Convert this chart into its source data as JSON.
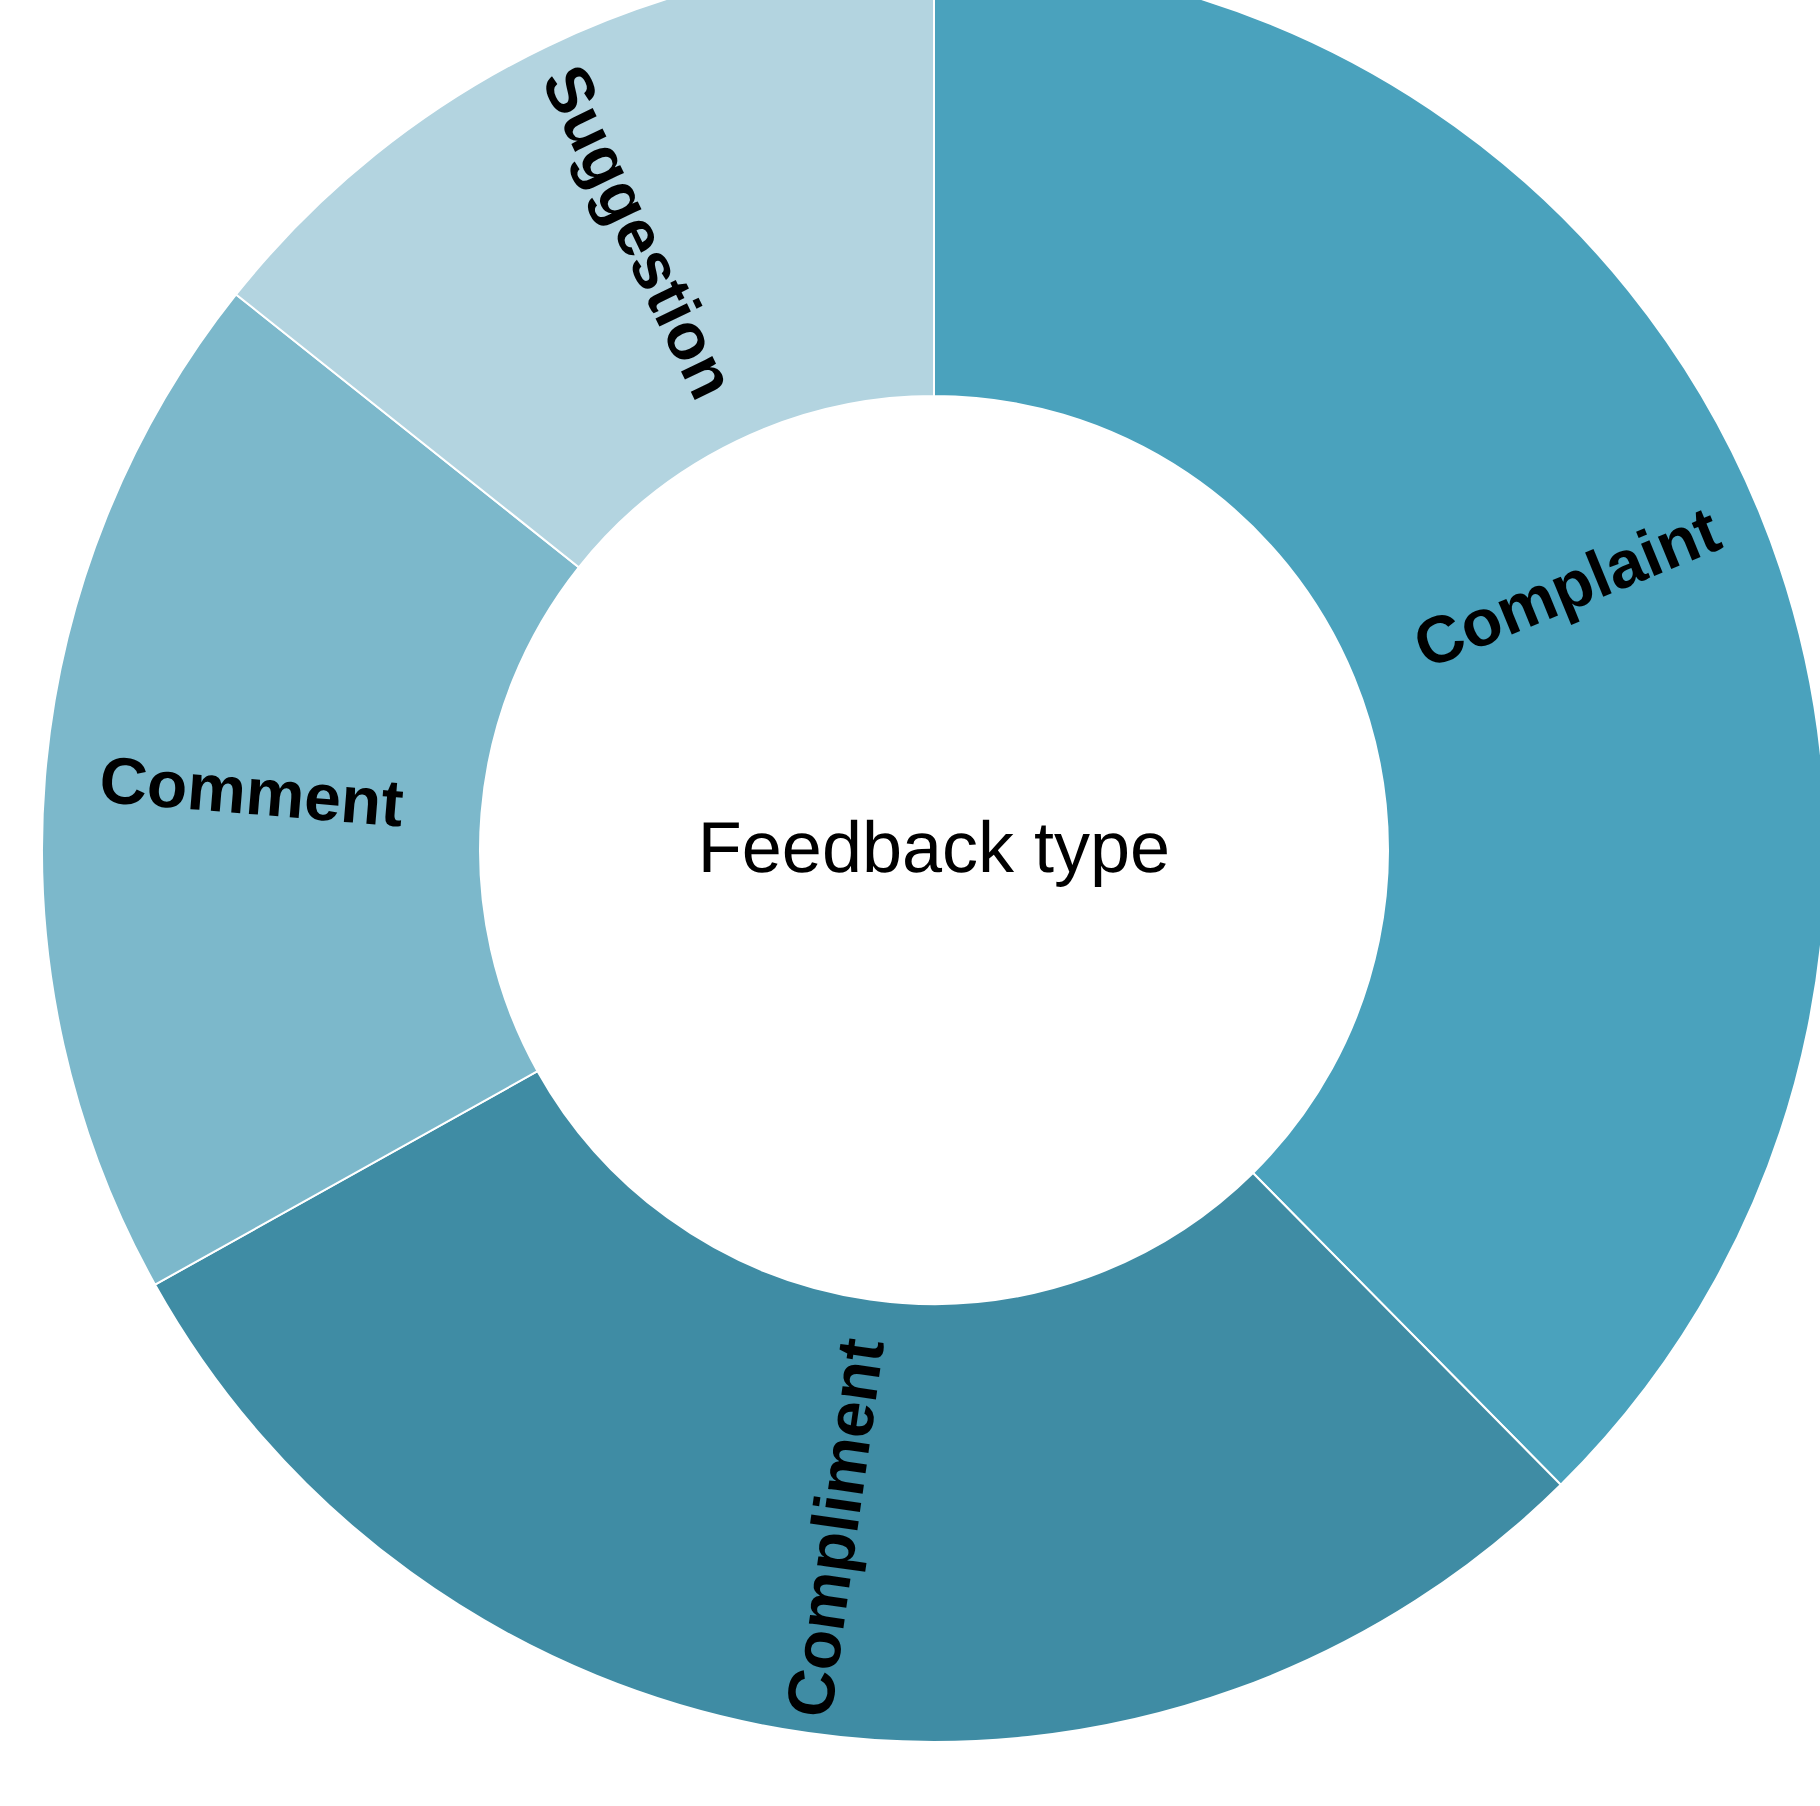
{
  "chart_data": {
    "type": "donut",
    "title": "Feedback type",
    "categories": [
      "Complaint",
      "Compliment",
      "Comment",
      "Suggestion"
    ],
    "values": [
      37.6,
      29.3,
      18.8,
      14.3
    ],
    "colors": [
      "#4aa2bd",
      "#3f8ca4",
      "#7cb8cb",
      "#b3d4e0"
    ]
  }
}
